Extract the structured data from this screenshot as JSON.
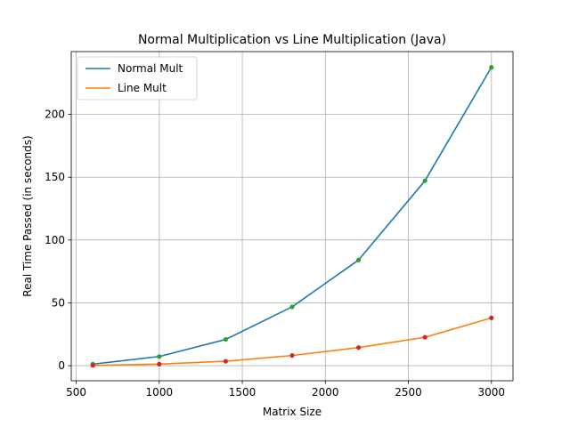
{
  "chart_data": {
    "type": "line",
    "title": "Normal Multiplication vs Line Multiplication (Java)",
    "xlabel": "Matrix Size",
    "ylabel": "Real Time Passed (in seconds)",
    "xlim": [
      470,
      3130
    ],
    "ylim": [
      -12,
      250
    ],
    "xticks": [
      500,
      1000,
      1500,
      2000,
      2500,
      3000
    ],
    "yticks": [
      0,
      50,
      100,
      150,
      200
    ],
    "grid": true,
    "legend_position": "top-left",
    "x": [
      600,
      1000,
      1400,
      1800,
      2200,
      2600,
      3000
    ],
    "series": [
      {
        "name": "Normal Mult",
        "color": "#1f77b4",
        "marker_color": "#2ca02c",
        "values": [
          1.2,
          7.3,
          20.9,
          46.8,
          84.1,
          147.2,
          237.5
        ]
      },
      {
        "name": "Line Mult",
        "color": "#ff7f0e",
        "marker_color": "#d62728",
        "values": [
          0.2,
          1.2,
          3.5,
          8.1,
          14.4,
          22.6,
          38.0
        ]
      }
    ]
  }
}
